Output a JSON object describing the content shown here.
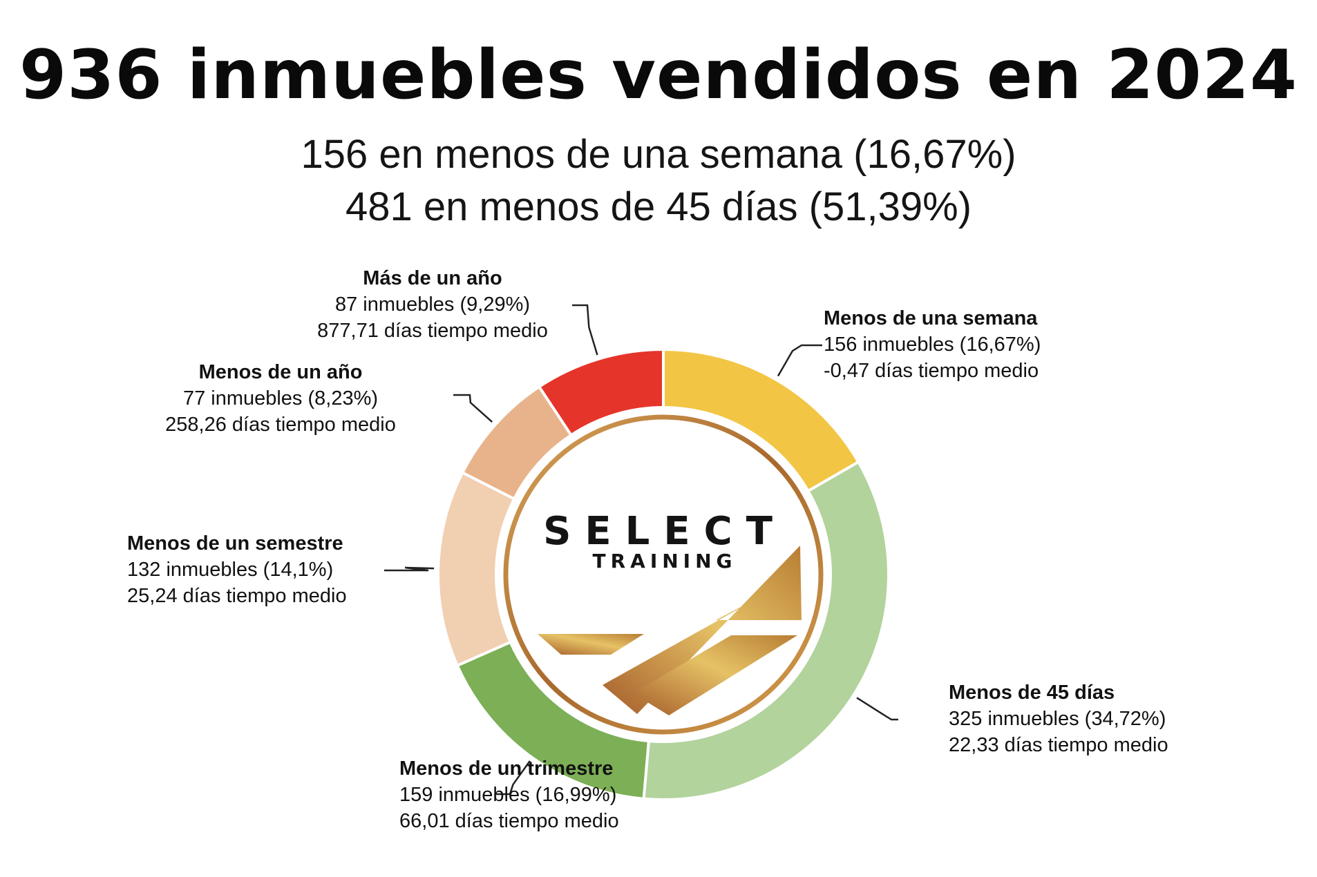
{
  "header": {
    "title": "936 inmuebles vendidos en 2024",
    "subtitle_1": "156 en menos de una semana (16,67%)",
    "subtitle_2": "481 en menos de 45 días (51,39%)"
  },
  "logo": {
    "name": "SELECT",
    "tagline": "TRAINING"
  },
  "chart_data": {
    "type": "pie",
    "variant": "donut",
    "total": 936,
    "slices": [
      {
        "label": "Menos de una semana",
        "value": 156,
        "line1": "156 inmuebles (16,67%)",
        "line2": "-0,47 días tiempo medio",
        "color": "#f2c544"
      },
      {
        "label": "Menos de 45 días",
        "value": 325,
        "line1": "325 inmuebles (34,72%)",
        "line2": "22,33 días tiempo medio",
        "color": "#b2d39c"
      },
      {
        "label": "Menos de un trimestre",
        "value": 159,
        "line1": "159 inmuebles (16,99%)",
        "line2": "66,01 días tiempo medio",
        "color": "#7daf56"
      },
      {
        "label": "Menos de un semestre",
        "value": 132,
        "line1": "132 inmuebles (14,1%)",
        "line2": "25,24 días tiempo medio",
        "color": "#f1cfb1"
      },
      {
        "label": "Menos de un año",
        "value": 77,
        "line1": "77 inmuebles (8,23%)",
        "line2": "258,26 días tiempo medio",
        "color": "#e8b38a"
      },
      {
        "label": "Más de un año",
        "value": 87,
        "line1": "87 inmuebles (9,29%)",
        "line2": "877,71 días tiempo medio",
        "color": "#e5352a"
      }
    ]
  }
}
